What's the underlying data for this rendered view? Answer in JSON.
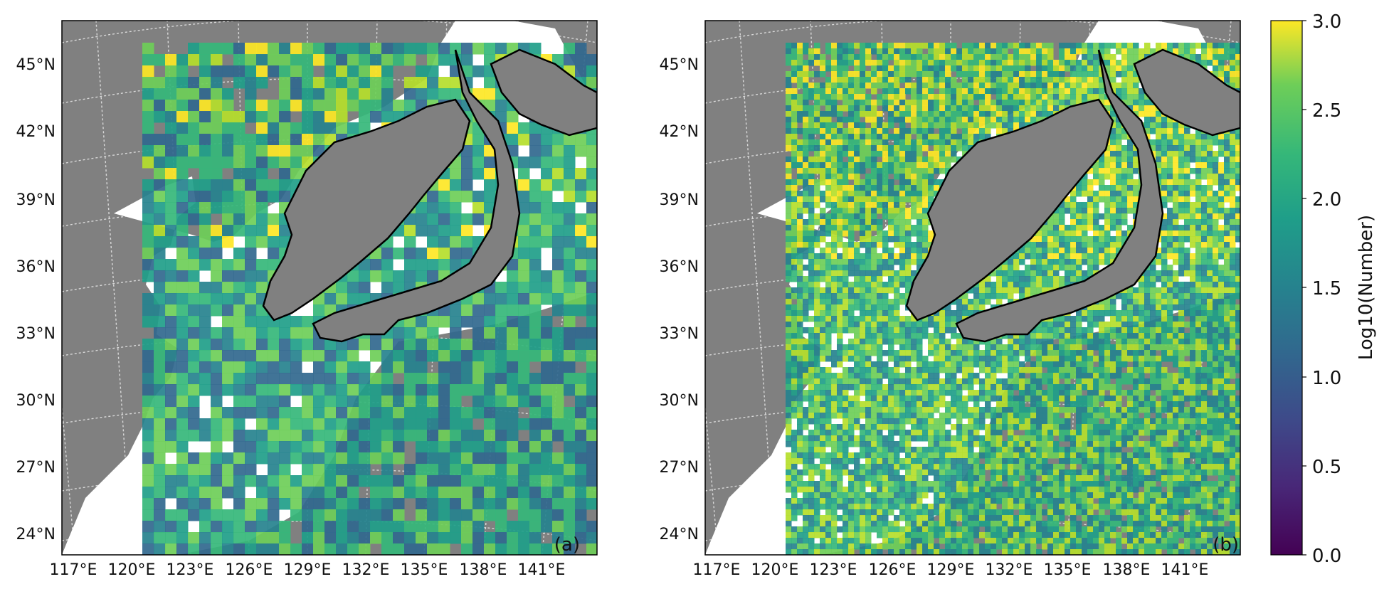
{
  "colors": {
    "land": "#808080",
    "no_data": "#ffffff",
    "graticule": "#d8d8d8",
    "coast": "#000000",
    "frame": "#000000"
  },
  "colormap": "viridis",
  "panels": [
    {
      "id": "a",
      "label": "(a)"
    },
    {
      "id": "b",
      "label": "(b)"
    }
  ],
  "lat_ticks": [
    "45°N",
    "42°N",
    "39°N",
    "36°N",
    "33°N",
    "30°N",
    "27°N",
    "24°N"
  ],
  "lon_ticks": [
    "117°E",
    "120°E",
    "123°E",
    "126°E",
    "129°E",
    "132°E",
    "135°E",
    "138°E",
    "141°E"
  ],
  "colorbar": {
    "label": "Log10(Number)",
    "min": 0.0,
    "max": 3.0,
    "ticks": [
      "3.0",
      "2.5",
      "2.0",
      "1.5",
      "1.0",
      "0.5",
      "0.0"
    ]
  }
}
